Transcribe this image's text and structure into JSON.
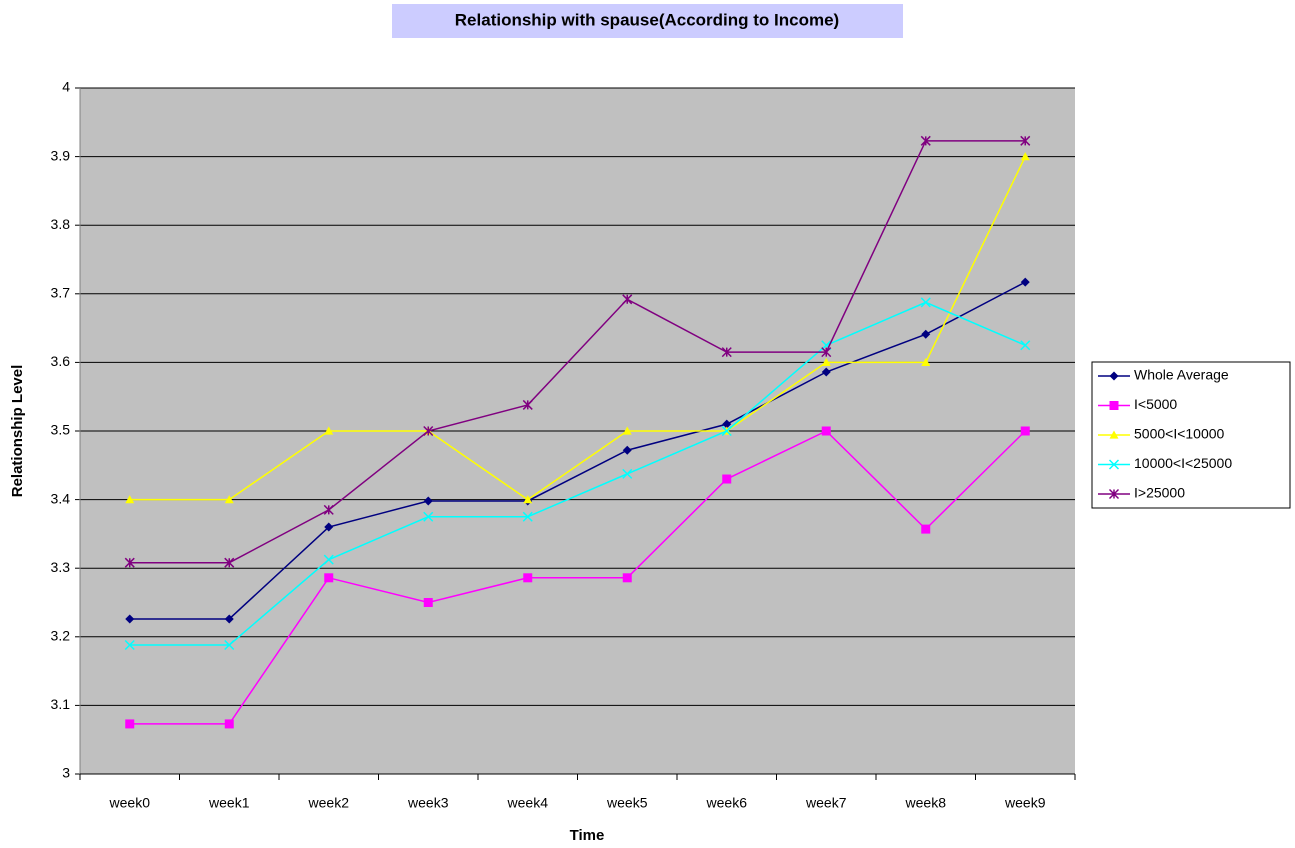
{
  "chart_data": {
    "type": "line",
    "title": "Relationship with spause(According to Income)",
    "x_label": "Time",
    "y_label": "Relationship Level",
    "categories": [
      "week0",
      "week1",
      "week2",
      "week3",
      "week4",
      "week5",
      "week6",
      "week7",
      "week8",
      "week9"
    ],
    "ylim": [
      3,
      4
    ],
    "yticks": [
      3,
      3.1,
      3.2,
      3.3,
      3.4,
      3.5,
      3.6,
      3.7,
      3.8,
      3.9,
      4
    ],
    "grid": true,
    "legend": "right",
    "series": [
      {
        "name": "Whole Average",
        "color": "#000080",
        "marker": "diamond",
        "values": [
          3.226,
          3.226,
          3.36,
          3.398,
          3.398,
          3.472,
          3.51,
          3.586,
          3.641,
          3.717
        ]
      },
      {
        "name": "I<5000",
        "color": "#ff00ff",
        "marker": "square",
        "values": [
          3.073,
          3.073,
          3.286,
          3.25,
          3.286,
          3.286,
          3.43,
          3.5,
          3.357,
          3.5
        ]
      },
      {
        "name": "5000<I<10000",
        "color": "#ffff00",
        "marker": "triangle",
        "values": [
          3.4,
          3.4,
          3.5,
          3.5,
          3.4,
          3.5,
          3.5,
          3.6,
          3.6,
          3.9
        ]
      },
      {
        "name": "10000<I<25000",
        "color": "#00ffff",
        "marker": "x",
        "values": [
          3.188,
          3.188,
          3.3125,
          3.375,
          3.375,
          3.4375,
          3.5,
          3.625,
          3.6875,
          3.625
        ]
      },
      {
        "name": "I>25000",
        "color": "#800080",
        "marker": "star",
        "values": [
          3.308,
          3.308,
          3.385,
          3.5,
          3.538,
          3.692,
          3.615,
          3.615,
          3.923,
          3.923
        ]
      }
    ]
  }
}
